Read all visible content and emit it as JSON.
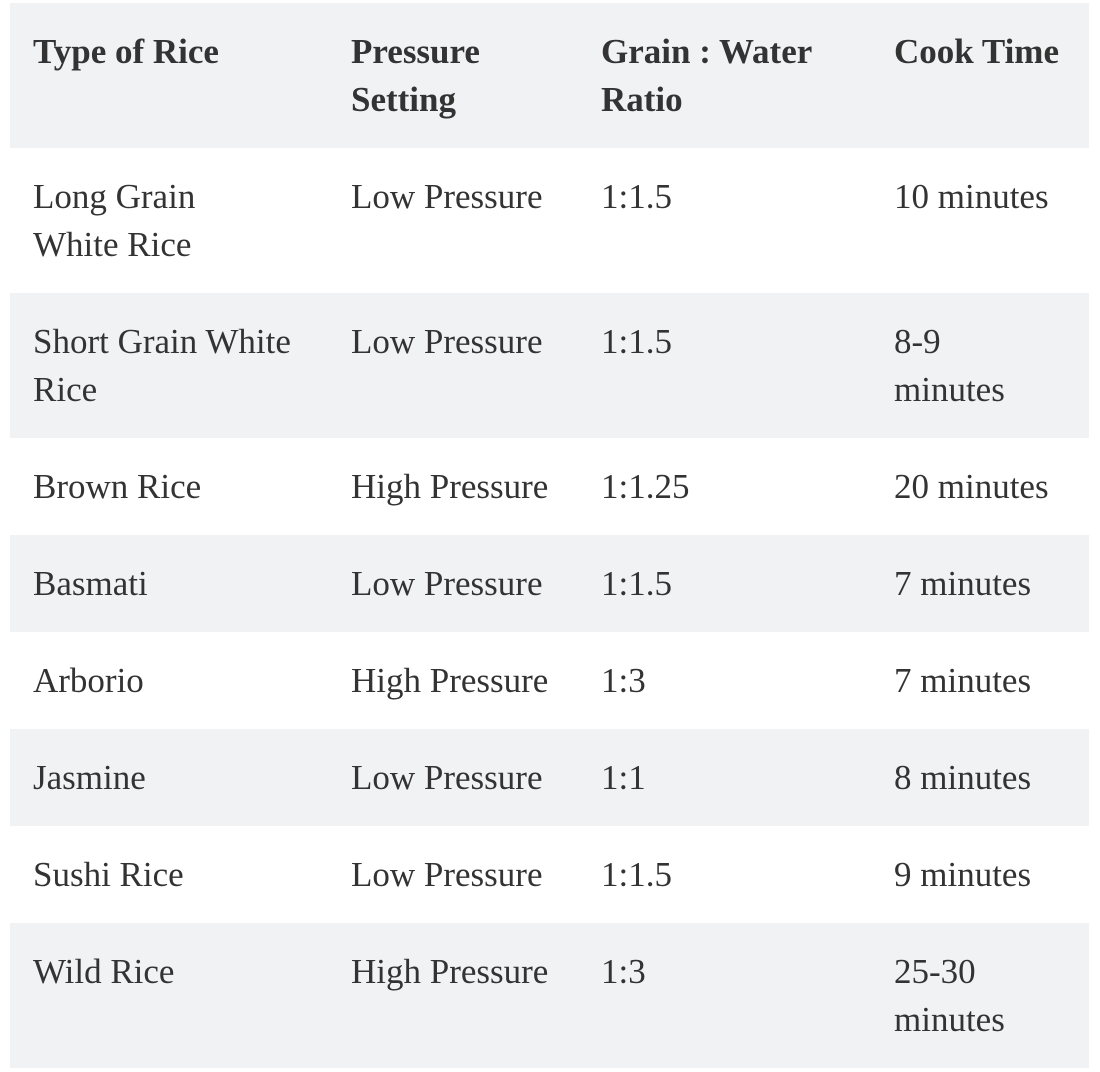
{
  "colors": {
    "stripe_bg": "#f1f2f3",
    "row_bg": "#ffffff",
    "text": "#333333"
  },
  "table": {
    "name": "rice-pressure-cooking-table",
    "columns": [
      "Type of Rice",
      "Pressure\nSetting",
      "Grain : Water\nRatio",
      "Cook Time"
    ],
    "rows": [
      [
        "Long Grain\nWhite Rice",
        "Low Pressure",
        "1:1.5",
        "10 minutes"
      ],
      [
        "Short Grain White\nRice",
        "Low Pressure",
        "1:1.5",
        "8-9\nminutes"
      ],
      [
        "Brown Rice",
        "High Pressure",
        "1:1.25",
        "20 minutes"
      ],
      [
        "Basmati",
        "Low Pressure",
        "1:1.5",
        "7 minutes"
      ],
      [
        "Arborio",
        "High Pressure",
        "1:3",
        "7 minutes"
      ],
      [
        "Jasmine",
        "Low Pressure",
        "1:1",
        "8 minutes"
      ],
      [
        "Sushi Rice",
        "Low Pressure",
        "1:1.5",
        "9 minutes"
      ],
      [
        "Wild Rice",
        "High Pressure",
        "1:3",
        "25-30\nminutes"
      ]
    ]
  }
}
